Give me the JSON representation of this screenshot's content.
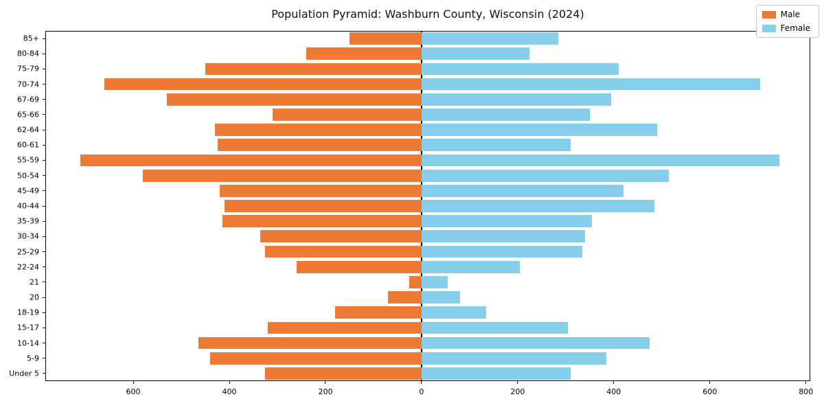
{
  "figure": {
    "title": "Population Pyramid: Washburn County, Wisconsin (2024)"
  },
  "legend": {
    "male_label": "Male",
    "female_label": "Female"
  },
  "chart_data": {
    "type": "bar",
    "subtype": "population-pyramid",
    "orientation": "horizontal",
    "title": "Population Pyramid: Washburn County, Wisconsin (2024)",
    "categories": [
      "85+",
      "80-84",
      "75-79",
      "70-74",
      "67-69",
      "65-66",
      "62-64",
      "60-61",
      "55-59",
      "50-54",
      "45-49",
      "40-44",
      "35-39",
      "30-34",
      "25-29",
      "22-24",
      "21",
      "20",
      "18-19",
      "15-17",
      "10-14",
      "5-9",
      "Under 5"
    ],
    "series": [
      {
        "name": "Male",
        "side": "left",
        "color": "#EC7A33",
        "values": [
          150,
          240,
          450,
          660,
          530,
          310,
          430,
          425,
          710,
          580,
          420,
          410,
          415,
          335,
          325,
          260,
          25,
          70,
          180,
          320,
          465,
          440,
          325
        ]
      },
      {
        "name": "Female",
        "side": "right",
        "color": "#87CEEB",
        "values": [
          285,
          225,
          410,
          705,
          395,
          350,
          490,
          310,
          745,
          515,
          420,
          485,
          355,
          340,
          335,
          205,
          55,
          80,
          135,
          305,
          475,
          385,
          310
        ]
      }
    ],
    "xlim": [
      -783,
      809
    ],
    "x_ticks": [
      -600,
      -400,
      -200,
      0,
      200,
      400,
      600,
      800
    ],
    "x_tick_labels": [
      "600",
      "400",
      "200",
      "0",
      "200",
      "400",
      "600",
      "800"
    ],
    "xlabel": "",
    "ylabel": "",
    "grid": false,
    "zero_line": true,
    "legend_position": "upper right"
  }
}
